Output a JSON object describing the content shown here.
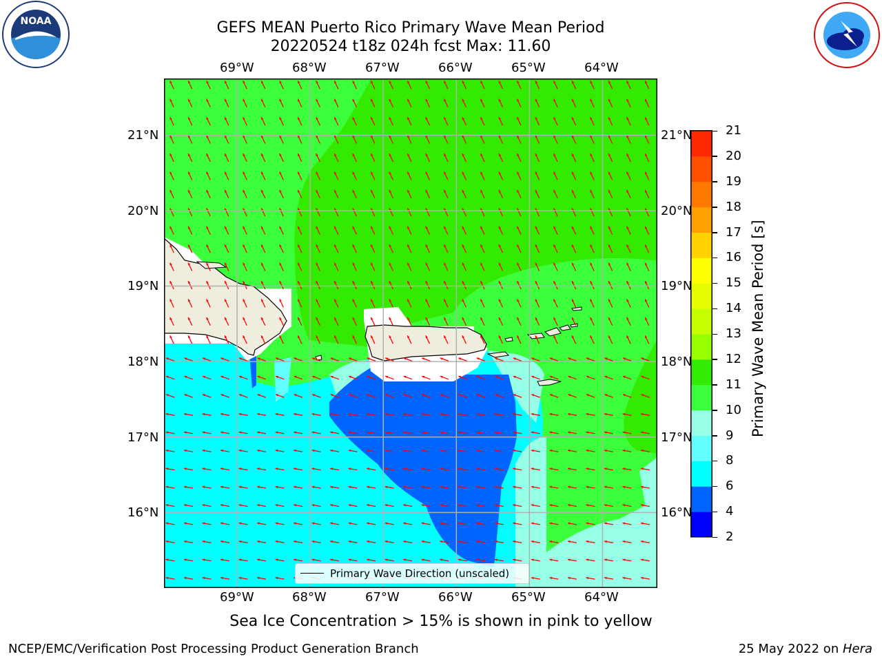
{
  "header": {
    "title_line1": "GEFS MEAN Puerto Rico Primary Wave Mean Period",
    "title_line2": "20220524 t18z 024h fcst   Max: 11.60"
  },
  "logos": {
    "noaa": "NOAA",
    "nws": "NATIONAL WEATHER SERVICE"
  },
  "map": {
    "lon_labels": [
      "69°W",
      "68°W",
      "67°W",
      "66°W",
      "65°W",
      "64°W"
    ],
    "lat_labels": [
      "21°N",
      "20°N",
      "19°N",
      "18°N",
      "17°N",
      "16°N"
    ],
    "lon_range": [
      -70.0,
      -63.25
    ],
    "lat_range": [
      15.0,
      21.75
    ],
    "legend_label": "Primary Wave Direction (unscaled)",
    "arrow_color": "#ff0000",
    "land_color": "#efedde"
  },
  "colorbar": {
    "label": "Primary Wave Mean Period [s]",
    "levels": [
      "2",
      "4",
      "6",
      "8",
      "9",
      "10",
      "11",
      "12",
      "13",
      "14",
      "15",
      "16",
      "17",
      "18",
      "19",
      "20",
      "21"
    ],
    "colors": [
      "#0000ff",
      "#0064ff",
      "#00ffff",
      "#64ffff",
      "#96ffe6",
      "#3cff3c",
      "#32eb00",
      "#96ff00",
      "#c8ff00",
      "#e6ff00",
      "#ffff00",
      "#ffd200",
      "#ffa000",
      "#ff7800",
      "#ff5000",
      "#ff2800",
      "#ff0000"
    ]
  },
  "notes": {
    "sea_ice": "Sea Ice Concentration > 15% is shown in pink to yellow",
    "branch": "NCEP/EMC/Verification Post Processing Product Generation Branch",
    "date": "25 May 2022 on ",
    "machine": "Hera"
  }
}
